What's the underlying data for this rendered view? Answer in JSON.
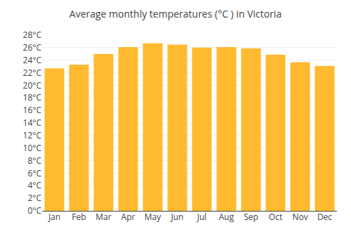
{
  "chart_data": {
    "type": "bar",
    "title": "Average monthly temperatures (°C ) in Victoria",
    "categories": [
      "Jan",
      "Feb",
      "Mar",
      "Apr",
      "May",
      "Jun",
      "Jul",
      "Aug",
      "Sep",
      "Oct",
      "Nov",
      "Dec"
    ],
    "values": [
      22.7,
      23.3,
      25.0,
      26.1,
      26.7,
      26.5,
      26.0,
      26.1,
      25.9,
      24.9,
      23.7,
      23.1
    ],
    "color": "#FFBA30",
    "ylim": [
      0,
      28
    ],
    "yticks": [
      {
        "value": 0,
        "label": "0°C"
      },
      {
        "value": 2,
        "label": "2°C"
      },
      {
        "value": 4,
        "label": "4°C"
      },
      {
        "value": 6,
        "label": "6°C"
      },
      {
        "value": 8,
        "label": "8°C"
      },
      {
        "value": 10,
        "label": "10°C"
      },
      {
        "value": 12,
        "label": "12°C"
      },
      {
        "value": 14,
        "label": "14°C"
      },
      {
        "value": 16,
        "label": "16°C"
      },
      {
        "value": 18,
        "label": "18°C"
      },
      {
        "value": 20,
        "label": "20°C"
      },
      {
        "value": 22,
        "label": "22°C"
      },
      {
        "value": 24,
        "label": "24°C"
      },
      {
        "value": 26,
        "label": "26°C"
      },
      {
        "value": 28,
        "label": "28°C"
      }
    ],
    "grid": true
  }
}
